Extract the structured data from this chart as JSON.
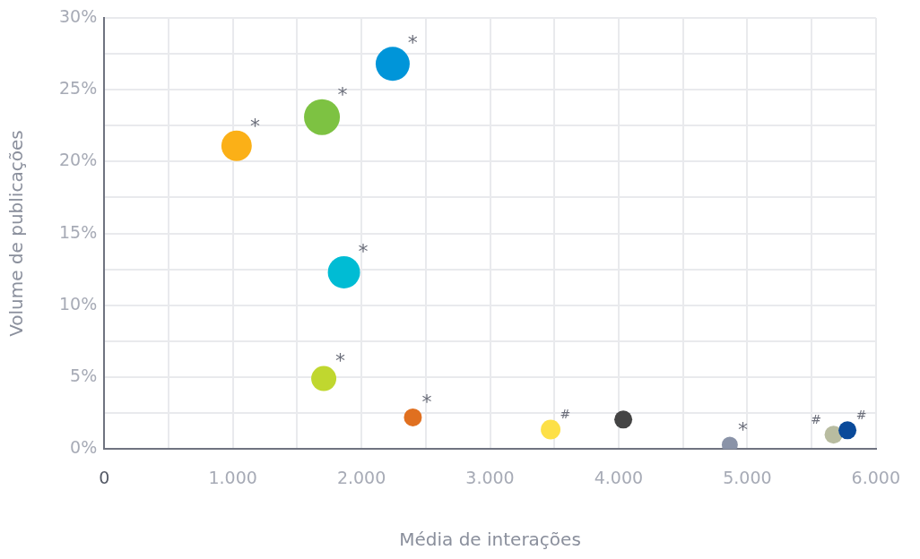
{
  "chart_data": {
    "type": "bubble",
    "xlabel": "Média de interações",
    "ylabel": "Volume de publicações",
    "x": [
      2243,
      1693,
      1029,
      1864,
      1707,
      2400,
      3471,
      4036,
      4864,
      5671,
      5779
    ],
    "values": [
      26.8,
      23.1,
      21.1,
      12.3,
      4.9,
      2.2,
      1.35,
      2.05,
      0.3,
      1.0,
      1.3
    ],
    "sizes": [
      0.9,
      1,
      0.72,
      0.81,
      0.49,
      0.25,
      0.3,
      0.25,
      0.2,
      0.25,
      0.25
    ],
    "colors": [
      "#0095d9",
      "#7dc242",
      "#fbb017",
      "#00bcd4",
      "#c0d72f",
      "#e07020",
      "#fde047",
      "#444444",
      "#8a93a8",
      "#b8bca0",
      "#0a4a9a"
    ],
    "xlim": [
      0,
      6000
    ],
    "xticks": [
      0,
      {
        "value": 500,
        "label": null
      },
      {
        "value": 1000,
        "label": "1.000"
      },
      {
        "value": 1500,
        "label": null
      },
      {
        "value": 2000,
        "label": "2.000"
      },
      {
        "value": 2500,
        "label": null
      },
      {
        "value": 3000,
        "label": "3.000"
      },
      {
        "value": 3500,
        "label": null
      },
      {
        "value": 4000,
        "label": "4.000"
      },
      {
        "value": 4500,
        "label": null
      },
      {
        "value": 5000,
        "label": "5.000"
      },
      {
        "value": 5500,
        "label": null
      },
      {
        "value": 6000,
        "label": "6.000"
      }
    ],
    "ylim": [
      0,
      30
    ],
    "yticks": [
      {
        "value": 0,
        "label": "0%"
      },
      {
        "value": 2.5,
        "label": null
      },
      {
        "value": 5,
        "label": "5%"
      },
      {
        "value": 7.5,
        "label": null
      },
      {
        "value": 10,
        "label": "10%"
      },
      {
        "value": 12.5,
        "label": null
      },
      {
        "value": 15,
        "label": "15%"
      },
      {
        "value": 17.5,
        "label": null
      },
      {
        "value": 20,
        "label": "20%"
      },
      {
        "value": 22.5,
        "label": null
      },
      {
        "value": 25,
        "label": "25%"
      },
      {
        "value": 27.5,
        "label": null
      },
      {
        "value": 30,
        "label": "30%"
      }
    ],
    "grid": true,
    "legend": false,
    "annotations": [
      {
        "text": "*",
        "x": 2243,
        "y": 26.8
      },
      {
        "text": "*",
        "x": 1693,
        "y": 23.1
      },
      {
        "text": "*",
        "x": 1029,
        "y": 21.1
      },
      {
        "text": "*",
        "x": 1864,
        "y": 12.3
      },
      {
        "text": "*",
        "x": 1707,
        "y": 4.9
      },
      {
        "text": "*",
        "x": 2400,
        "y": 2.2
      },
      {
        "text": "#",
        "x": 3471,
        "y": 1.35
      },
      {
        "text": "*",
        "x": 4864,
        "y": 0.3
      },
      {
        "text": "#",
        "x": 5671,
        "y": 1.0
      },
      {
        "text": "#",
        "x": 5779,
        "y": 1.3
      }
    ]
  }
}
